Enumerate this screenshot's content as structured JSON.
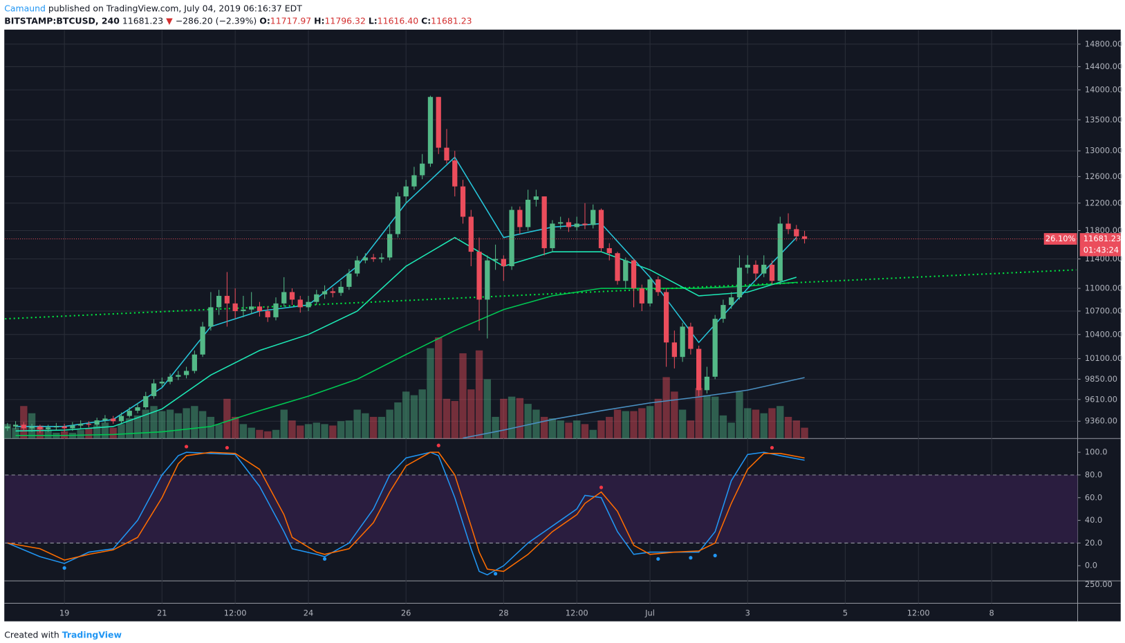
{
  "header": {
    "author": "Camaund",
    "published": "published on TradingView.com, July 04, 2019 06:16:37 EDT",
    "symbol": "BITSTAMP:BTCUSD, 240",
    "last": "11681.23",
    "change": "−286.20 (−2.39%)",
    "open_label": "O:",
    "open": "11717.97",
    "high_label": "H:",
    "high": "11796.32",
    "low_label": "L:",
    "low": "11616.40",
    "close_label": "C:",
    "close": "11681.23"
  },
  "footer": {
    "created": "Created with",
    "brand": "TradingView"
  },
  "lower_pane": {
    "label": "250.00"
  },
  "chart_data": [
    {
      "type": "candlestick",
      "log_scale": true,
      "grid": true,
      "up_color": "#53b987",
      "down_color": "#eb4d5c",
      "last_change_label": "26.10%",
      "countdown": "01:43:24",
      "x": [
        -7,
        -6,
        -5,
        -4,
        -3,
        -2,
        -1,
        0,
        1,
        2,
        3,
        4,
        5,
        6,
        7,
        8,
        9,
        10,
        11,
        12,
        13,
        14,
        15,
        16,
        17,
        18,
        19,
        20,
        21,
        22,
        23,
        24,
        25,
        26,
        27,
        28,
        29,
        30,
        31,
        32,
        33,
        34,
        35,
        36,
        37,
        38,
        39,
        40,
        41,
        42,
        43,
        44,
        45,
        46,
        47,
        48,
        49,
        50,
        51,
        52,
        53,
        54,
        55,
        56,
        57,
        58,
        59,
        60,
        61,
        62,
        63,
        64,
        65,
        66,
        67,
        68,
        69,
        70,
        71,
        72,
        73,
        74,
        75,
        76,
        77,
        78,
        79,
        80,
        81,
        82,
        83,
        84,
        85,
        86,
        87,
        88,
        89,
        90,
        91
      ],
      "open": [
        9280,
        9300,
        9320,
        9280,
        9300,
        9270,
        9290,
        9300,
        9280,
        9310,
        9330,
        9320,
        9370,
        9390,
        9360,
        9420,
        9480,
        9520,
        9650,
        9800,
        9820,
        9880,
        9900,
        9950,
        10150,
        10500,
        10750,
        10900,
        10800,
        10700,
        10720,
        10760,
        10700,
        10620,
        10800,
        10950,
        10850,
        10750,
        10820,
        10920,
        10960,
        10940,
        11020,
        11200,
        11380,
        11420,
        11400,
        11420,
        11750,
        12300,
        12450,
        12620,
        12800,
        13880,
        13050,
        12850,
        12450,
        12000,
        11500,
        10850,
        11380,
        11400,
        11300,
        12100,
        11850,
        12250,
        12300,
        11550,
        11900,
        11920,
        11850,
        11900,
        11880,
        12100,
        11550,
        11480,
        11100,
        11380,
        11000,
        10800,
        11120,
        10950,
        10300,
        10120,
        10500,
        10220,
        9720,
        9880,
        10600,
        10780,
        10880,
        11280,
        11320,
        11200,
        11320,
        11100,
        11900,
        11820,
        11717.97
      ],
      "high": [
        9340,
        9360,
        9350,
        9330,
        9320,
        9320,
        9340,
        9330,
        9350,
        9370,
        9360,
        9400,
        9430,
        9420,
        9460,
        9520,
        9570,
        9700,
        9850,
        9870,
        9920,
        9950,
        10000,
        10200,
        10560,
        10950,
        10980,
        11220,
        11000,
        10900,
        10950,
        10820,
        10760,
        10880,
        11150,
        11000,
        10900,
        10900,
        10980,
        11040,
        11010,
        11100,
        11260,
        11440,
        11480,
        11470,
        11480,
        11900,
        12360,
        12550,
        12750,
        12950,
        13900,
        13880,
        13350,
        13000,
        12550,
        12100,
        11700,
        11450,
        11600,
        11450,
        12150,
        12150,
        12400,
        12400,
        12300,
        11950,
        12000,
        11980,
        12000,
        12200,
        12180,
        12120,
        11620,
        11500,
        11420,
        11400,
        11050,
        11150,
        11160,
        11000,
        10450,
        10550,
        10550,
        10260,
        10000,
        10650,
        10850,
        10950,
        11450,
        11450,
        11380,
        11450,
        11380,
        12000,
        12050,
        11880,
        11796.32
      ],
      "low": [
        9250,
        9270,
        9250,
        9240,
        9230,
        9240,
        9260,
        9240,
        9250,
        9280,
        9290,
        9300,
        9340,
        9330,
        9340,
        9400,
        9450,
        9500,
        9620,
        9760,
        9790,
        9840,
        9860,
        9920,
        10120,
        10450,
        10650,
        10500,
        10600,
        10620,
        10660,
        10630,
        10560,
        10580,
        10760,
        10780,
        10680,
        10700,
        10780,
        10860,
        10880,
        10900,
        10980,
        11160,
        11340,
        11360,
        11350,
        11380,
        11700,
        12200,
        12400,
        12560,
        12750,
        12950,
        12800,
        12300,
        11900,
        11300,
        10450,
        10350,
        11250,
        11100,
        11250,
        11750,
        11800,
        12150,
        11450,
        11500,
        11820,
        11780,
        11800,
        11820,
        11830,
        11500,
        11380,
        11050,
        11000,
        10750,
        10700,
        10760,
        10900,
        10000,
        9980,
        10060,
        10150,
        9650,
        9680,
        9850,
        10550,
        10730,
        10850,
        11200,
        11100,
        11150,
        11050,
        11050,
        11750,
        11650,
        11616.4
      ],
      "close": [
        9300,
        9320,
        9280,
        9300,
        9270,
        9290,
        9300,
        9280,
        9310,
        9330,
        9320,
        9370,
        9390,
        9360,
        9420,
        9480,
        9520,
        9650,
        9800,
        9820,
        9880,
        9900,
        9950,
        10150,
        10500,
        10750,
        10900,
        10800,
        10700,
        10720,
        10760,
        10700,
        10620,
        10800,
        10950,
        10850,
        10750,
        10820,
        10920,
        10960,
        10940,
        11020,
        11200,
        11380,
        11420,
        11400,
        11420,
        11750,
        12300,
        12450,
        12620,
        12800,
        13880,
        13050,
        12850,
        12450,
        12000,
        11500,
        10850,
        11380,
        11400,
        11300,
        12100,
        11850,
        12250,
        12300,
        11550,
        11900,
        11920,
        11850,
        11900,
        11880,
        12100,
        11550,
        11480,
        11100,
        11380,
        11000,
        10800,
        11120,
        10950,
        10300,
        10120,
        10500,
        10220,
        9720,
        9880,
        10600,
        10780,
        10880,
        11280,
        11320,
        11200,
        11320,
        11100,
        11900,
        11820,
        11717.97,
        11681.23
      ],
      "volume": [
        2000,
        1500,
        4500,
        3500,
        1800,
        1200,
        800,
        1000,
        800,
        1200,
        1400,
        1800,
        2200,
        1500,
        2000,
        2800,
        3200,
        4000,
        4500,
        3800,
        4000,
        3500,
        4200,
        4500,
        3800,
        3000,
        2000,
        5500,
        3000,
        2000,
        1500,
        1200,
        1000,
        1200,
        4000,
        2500,
        1800,
        2000,
        2200,
        2000,
        1800,
        2400,
        2500,
        4000,
        3500,
        3000,
        3000,
        4000,
        5000,
        6500,
        6000,
        6800,
        12500,
        14000,
        5500,
        5200,
        11800,
        6800,
        12200,
        8200,
        3000,
        5500,
        5800,
        5600,
        4800,
        4000,
        3000,
        2800,
        2500,
        2200,
        2500,
        2000,
        1200,
        2500,
        3000,
        4000,
        3800,
        3800,
        4200,
        4500,
        5500,
        8500,
        6500,
        4000,
        2500,
        7000,
        6000,
        5800,
        3200,
        2200,
        6500,
        4200,
        4000,
        3500,
        4200,
        4500,
        3000,
        2500,
        1500
      ],
      "volume_ylim": [
        0,
        56500
      ],
      "xlim": [
        -7.3,
        124.4
      ],
      "xticks": [
        {
          "value": 0,
          "label": "19"
        },
        {
          "value": 12,
          "label": "21"
        },
        {
          "value": 21,
          "label": "12:00"
        },
        {
          "value": 30,
          "label": "24"
        },
        {
          "value": 42,
          "label": "26"
        },
        {
          "value": 54,
          "label": "28"
        },
        {
          "value": 63,
          "label": "12:00"
        },
        {
          "value": 72,
          "label": "Jul"
        },
        {
          "value": 84,
          "label": "3"
        },
        {
          "value": 96,
          "label": "5"
        },
        {
          "value": 105,
          "label": "12:00"
        },
        {
          "value": 114,
          "label": "8"
        }
      ],
      "ylim": [
        9165,
        15050
      ],
      "yticks": [
        {
          "value": 9360,
          "label": "9360.00"
        },
        {
          "value": 9610,
          "label": "9610.00"
        },
        {
          "value": 9850,
          "label": "9850.00"
        },
        {
          "value": 10100,
          "label": "10100.00"
        },
        {
          "value": 10400,
          "label": "10400.00"
        },
        {
          "value": 10700,
          "label": "10700.00"
        },
        {
          "value": 11000,
          "label": "11000.00"
        },
        {
          "value": 11400,
          "label": "11400.00"
        },
        {
          "value": 11800,
          "label": "11800.00"
        },
        {
          "value": 12200,
          "label": "12200.00"
        },
        {
          "value": 12600,
          "label": "12600.00"
        },
        {
          "value": 13000,
          "label": "13000.00"
        },
        {
          "value": 13500,
          "label": "13500.00"
        },
        {
          "value": 14000,
          "label": "14000.00"
        },
        {
          "value": 14400,
          "label": "14400.00"
        },
        {
          "value": 14800,
          "label": "14800.00"
        }
      ],
      "overlays": [
        {
          "color": "#00c853",
          "x": [
            -6,
            0,
            6,
            12,
            18,
            24,
            30,
            36,
            42,
            48,
            54,
            60,
            66,
            72,
            78,
            84,
            90
          ],
          "values": [
            9200,
            9200,
            9210,
            9240,
            9300,
            9480,
            9650,
            9850,
            10150,
            10450,
            10720,
            10900,
            11000,
            11000,
            11000,
            11030,
            11080
          ]
        },
        {
          "color": "#1de9b6",
          "x": [
            -6,
            0,
            6,
            12,
            18,
            24,
            30,
            36,
            42,
            48,
            54,
            60,
            66,
            72,
            78,
            84,
            90
          ],
          "values": [
            9250,
            9260,
            9300,
            9500,
            9900,
            10200,
            10400,
            10700,
            11300,
            11700,
            11300,
            11500,
            11500,
            11250,
            10900,
            10950,
            11150
          ]
        },
        {
          "color": "#26c6da",
          "x": [
            -6,
            0,
            6,
            12,
            18,
            24,
            30,
            36,
            42,
            48,
            54,
            60,
            66,
            72,
            78,
            84,
            90
          ],
          "values": [
            9300,
            9300,
            9380,
            9750,
            10500,
            10700,
            10780,
            11300,
            12200,
            12900,
            11700,
            11850,
            11900,
            11150,
            10300,
            11000,
            11700
          ]
        },
        {
          "color": "#4a90c2",
          "x": [
            49,
            54,
            60,
            66,
            72,
            78,
            84,
            91
          ],
          "values": [
            9170,
            9260,
            9380,
            9480,
            9570,
            9640,
            9720,
            9870
          ]
        },
        {
          "color": "#00e640",
          "dashed": true,
          "x": [
            -7.3,
            124.4
          ],
          "values": [
            10600,
            11250
          ]
        }
      ]
    },
    {
      "type": "line",
      "xlim": [
        -7.3,
        124.4
      ],
      "ylim": [
        -12.7,
        112.1
      ],
      "yticks": [
        {
          "value": 0,
          "label": "0.0"
        },
        {
          "value": 20,
          "label": "20.0"
        },
        {
          "value": 40,
          "label": "40.0"
        },
        {
          "value": 60,
          "label": "60.0"
        },
        {
          "value": 80,
          "label": "80.0"
        },
        {
          "value": 100,
          "label": "100.0"
        }
      ],
      "band": [
        20,
        80
      ],
      "band_color": "#2a1d3f",
      "x": [
        -7,
        -3,
        0,
        3,
        6,
        9,
        12,
        14,
        15,
        18,
        21,
        24,
        27,
        28,
        31,
        32,
        35,
        38,
        40,
        42,
        45,
        46,
        48,
        50,
        51,
        52,
        54,
        57,
        60,
        63,
        64,
        66,
        68,
        70,
        72,
        75,
        78,
        80,
        82,
        84,
        86,
        88,
        91
      ],
      "series": [
        {
          "color": "#2196f3",
          "values": [
            20,
            8,
            2,
            12,
            15,
            40,
            80,
            97,
            100,
            99,
            98,
            70,
            30,
            15,
            10,
            8,
            20,
            50,
            80,
            95,
            100,
            97,
            60,
            15,
            -5,
            -8,
            0,
            20,
            35,
            50,
            62,
            60,
            30,
            10,
            12,
            12,
            12,
            30,
            75,
            98,
            100,
            97,
            93
          ]
        },
        {
          "color": "#ff6d00",
          "values": [
            20,
            15,
            5,
            10,
            14,
            25,
            60,
            90,
            97,
            100,
            99,
            85,
            45,
            25,
            12,
            10,
            15,
            38,
            65,
            88,
            100,
            100,
            80,
            35,
            12,
            -3,
            -5,
            10,
            30,
            45,
            55,
            65,
            48,
            18,
            10,
            12,
            13,
            20,
            55,
            85,
            99,
            99,
            95
          ]
        }
      ],
      "signals": [
        {
          "color": "#f23645",
          "x": [
            15,
            20,
            46,
            66,
            87
          ],
          "values": [
            105,
            104,
            106,
            69,
            104
          ]
        },
        {
          "color": "#2196f3",
          "x": [
            0,
            32,
            53,
            73,
            77,
            80
          ],
          "values": [
            -2,
            6,
            -7,
            6,
            7,
            9
          ]
        }
      ]
    }
  ]
}
